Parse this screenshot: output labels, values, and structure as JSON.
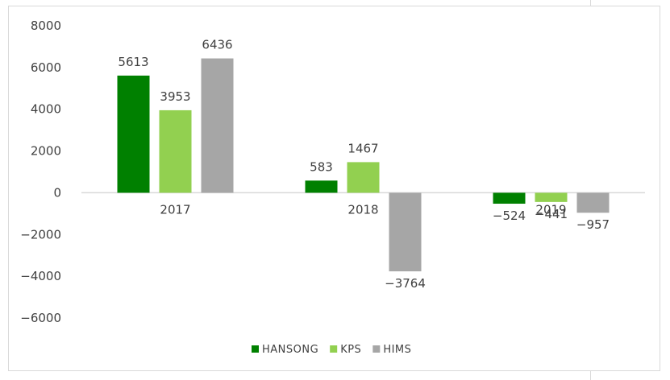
{
  "chart_data": {
    "type": "bar",
    "categories": [
      "2017",
      "2018",
      "2019"
    ],
    "series": [
      {
        "name": "HANSONG",
        "color": "#008000",
        "values": [
          5613,
          583,
          -524
        ]
      },
      {
        "name": "KPS",
        "color": "#92d050",
        "values": [
          3953,
          1467,
          -441
        ]
      },
      {
        "name": "HIMS",
        "color": "#a6a6a6",
        "values": [
          6436,
          -3764,
          -957
        ]
      }
    ],
    "data_labels": [
      [
        "5613",
        "583",
        "−524"
      ],
      [
        "3953",
        "1467",
        "−441"
      ],
      [
        "6436",
        "−3764",
        "−957"
      ]
    ],
    "yticks": [
      8000,
      6000,
      4000,
      2000,
      0,
      -2000,
      -4000,
      -6000
    ],
    "ytick_labels": [
      "8000",
      "6000",
      "4000",
      "2000",
      "0",
      "−2000",
      "−4000",
      "−6000"
    ],
    "ylim": [
      -6000,
      8000
    ],
    "grid": false,
    "legend": "bottom",
    "title": "",
    "xlabel": "",
    "ylabel": ""
  }
}
